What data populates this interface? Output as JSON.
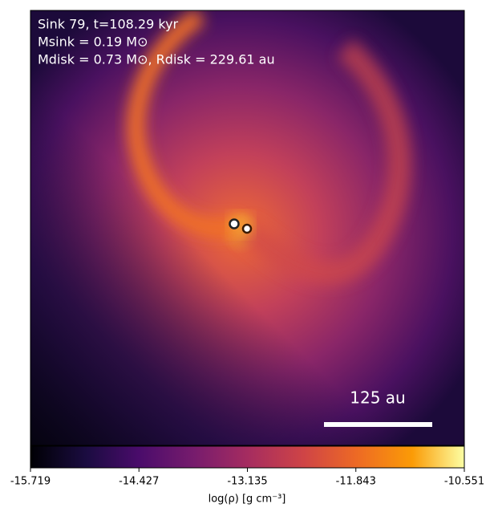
{
  "chart_data": {
    "type": "image",
    "annotations": [
      "Sink 79, t=108.29 kyr",
      "Msink = 0.19 M⊙",
      "Mdisk = 0.73 M⊙, Rdisk = 229.61 au"
    ],
    "scale_bar_label": "125 au",
    "colorbar": {
      "label": "log(ρ) [g cm⁻³]",
      "lim": [
        -15.719,
        -10.551
      ],
      "ticks": [
        -15.719,
        -14.427,
        -13.135,
        -11.843,
        -10.551
      ],
      "cmap": "inferno"
    }
  }
}
